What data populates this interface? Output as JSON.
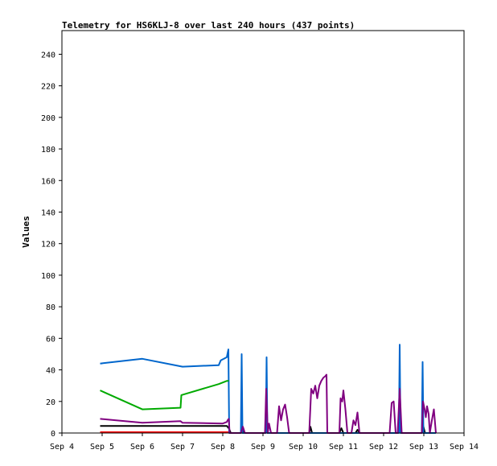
{
  "chart_data": {
    "type": "line",
    "title": "Telemetry for HS6KLJ-8 over last 240 hours (437 points)",
    "xlabel": "",
    "ylabel": "Values",
    "ylim": [
      0,
      255
    ],
    "xlim": [
      4,
      14
    ],
    "yticks": [
      0,
      20,
      40,
      60,
      80,
      100,
      120,
      140,
      160,
      180,
      200,
      220,
      240
    ],
    "xticks": [
      {
        "v": 4,
        "label": "Sep 4"
      },
      {
        "v": 5,
        "label": "Sep 5"
      },
      {
        "v": 6,
        "label": "Sep 6"
      },
      {
        "v": 7,
        "label": "Sep 7"
      },
      {
        "v": 8,
        "label": "Sep 8"
      },
      {
        "v": 9,
        "label": "Sep 9"
      },
      {
        "v": 10,
        "label": "Sep 10"
      },
      {
        "v": 11,
        "label": "Sep 11"
      },
      {
        "v": 12,
        "label": "Sep 12"
      },
      {
        "v": 13,
        "label": "Sep 13"
      },
      {
        "v": 14,
        "label": "Sep 14"
      }
    ],
    "grid": false,
    "series": [
      {
        "color": "#ff0000",
        "points": [
          [
            4.95,
            0.5
          ],
          [
            8.15,
            0.5
          ]
        ]
      },
      {
        "color": "#000000",
        "points": [
          [
            4.95,
            4.5
          ],
          [
            6.0,
            4.5
          ],
          [
            8.1,
            4.5
          ],
          [
            8.15,
            3
          ],
          [
            8.2,
            0
          ],
          [
            8.45,
            0
          ],
          [
            8.48,
            3
          ],
          [
            8.52,
            0
          ],
          [
            9.05,
            0
          ],
          [
            9.08,
            5
          ],
          [
            9.12,
            0
          ],
          [
            10.15,
            0
          ],
          [
            10.18,
            4
          ],
          [
            10.22,
            0
          ],
          [
            10.9,
            0
          ],
          [
            10.95,
            3
          ],
          [
            11.0,
            0
          ],
          [
            11.3,
            0
          ],
          [
            11.35,
            2
          ],
          [
            11.4,
            0
          ],
          [
            12.35,
            0
          ],
          [
            12.4,
            6
          ],
          [
            12.45,
            0
          ],
          [
            12.95,
            0
          ],
          [
            12.98,
            5
          ],
          [
            13.03,
            0
          ],
          [
            13.3,
            0
          ]
        ]
      },
      {
        "color": "#0066cc",
        "points": [
          [
            4.95,
            44
          ],
          [
            6.0,
            47
          ],
          [
            7.0,
            42
          ],
          [
            7.9,
            43
          ],
          [
            7.95,
            46
          ],
          [
            8.1,
            48
          ],
          [
            8.14,
            53
          ],
          [
            8.16,
            0
          ],
          [
            8.45,
            0
          ],
          [
            8.47,
            50
          ],
          [
            8.49,
            0
          ],
          [
            9.07,
            0
          ],
          [
            9.09,
            48
          ],
          [
            9.11,
            0
          ],
          [
            12.38,
            0
          ],
          [
            12.4,
            56
          ],
          [
            12.42,
            0
          ],
          [
            12.95,
            0
          ],
          [
            12.97,
            45
          ],
          [
            12.99,
            0
          ],
          [
            13.3,
            0
          ]
        ]
      },
      {
        "color": "#00aa00",
        "points": [
          [
            4.95,
            27
          ],
          [
            6.0,
            15
          ],
          [
            6.95,
            16
          ],
          [
            6.97,
            24
          ],
          [
            7.9,
            31
          ],
          [
            8.1,
            33
          ],
          [
            8.15,
            33
          ]
        ]
      },
      {
        "color": "#800080",
        "points": [
          [
            4.95,
            9
          ],
          [
            6.0,
            6.5
          ],
          [
            6.95,
            7.5
          ],
          [
            7.0,
            6.5
          ],
          [
            8.0,
            6
          ],
          [
            8.1,
            7
          ],
          [
            8.12,
            8
          ],
          [
            8.15,
            9
          ],
          [
            8.17,
            0
          ],
          [
            8.45,
            0
          ],
          [
            8.5,
            4
          ],
          [
            8.55,
            0
          ],
          [
            9.05,
            0
          ],
          [
            9.08,
            28
          ],
          [
            9.12,
            0
          ],
          [
            9.15,
            6
          ],
          [
            9.2,
            0
          ],
          [
            9.35,
            0
          ],
          [
            9.4,
            17
          ],
          [
            9.45,
            8
          ],
          [
            9.5,
            15
          ],
          [
            9.55,
            18
          ],
          [
            9.6,
            10
          ],
          [
            9.65,
            0
          ],
          [
            10.15,
            0
          ],
          [
            10.2,
            28
          ],
          [
            10.25,
            25
          ],
          [
            10.3,
            30
          ],
          [
            10.35,
            22
          ],
          [
            10.4,
            30
          ],
          [
            10.45,
            33
          ],
          [
            10.5,
            35
          ],
          [
            10.55,
            36
          ],
          [
            10.58,
            37
          ],
          [
            10.6,
            0
          ],
          [
            10.9,
            0
          ],
          [
            10.93,
            22
          ],
          [
            10.97,
            20
          ],
          [
            11.0,
            27
          ],
          [
            11.05,
            15
          ],
          [
            11.1,
            0
          ],
          [
            11.2,
            0
          ],
          [
            11.25,
            8
          ],
          [
            11.3,
            5
          ],
          [
            11.35,
            13
          ],
          [
            11.4,
            0
          ],
          [
            12.15,
            0
          ],
          [
            12.2,
            19
          ],
          [
            12.25,
            20
          ],
          [
            12.3,
            0
          ],
          [
            12.35,
            0
          ],
          [
            12.4,
            28
          ],
          [
            12.45,
            0
          ],
          [
            12.95,
            0
          ],
          [
            12.98,
            20
          ],
          [
            13.02,
            15
          ],
          [
            13.05,
            10
          ],
          [
            13.08,
            17
          ],
          [
            13.12,
            12
          ],
          [
            13.15,
            0
          ],
          [
            13.2,
            8
          ],
          [
            13.25,
            15
          ],
          [
            13.3,
            0
          ]
        ]
      }
    ]
  }
}
